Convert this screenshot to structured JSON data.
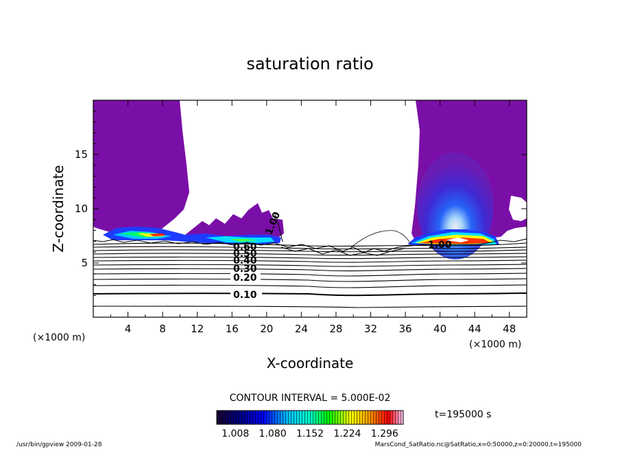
{
  "chart_data": {
    "type": "heatmap",
    "title": "saturation ratio",
    "xlabel": "X-coordinate",
    "ylabel": "Z-coordinate",
    "x_unit": "(×1000 m)",
    "z_unit": "(×1000 m)",
    "xlim": [
      0,
      50
    ],
    "ylim": [
      0,
      20
    ],
    "x_ticks": [
      4,
      8,
      12,
      16,
      20,
      24,
      28,
      32,
      36,
      40,
      44,
      48
    ],
    "y_ticks": [
      5,
      10,
      15
    ],
    "contour_interval_text": "CONTOUR INTERVAL = 5.000E-02",
    "colorbar": {
      "min": 0.972,
      "max": 1.332,
      "tick_labels": [
        "1.008",
        "1.080",
        "1.152",
        "1.224",
        "1.296"
      ],
      "colors": [
        "#1a0033",
        "#000080",
        "#0000ff",
        "#00bfff",
        "#00ffcc",
        "#00ff00",
        "#ffff00",
        "#ff9900",
        "#ff0000",
        "#ffccff"
      ]
    },
    "contour_labels": [
      "0.10",
      "0.20",
      "0.30",
      "0.40",
      "0.50",
      "0.60",
      "1.00"
    ],
    "fill_color_above_max": "#7a0fa8",
    "time_label": "t=195000 s"
  },
  "footer": {
    "left": "/usr/bin/gpview   2009-01-28",
    "right": "MarsCond_SatRatio.nc@SatRatio,x=0:50000,z=0:20000,t=195000"
  }
}
